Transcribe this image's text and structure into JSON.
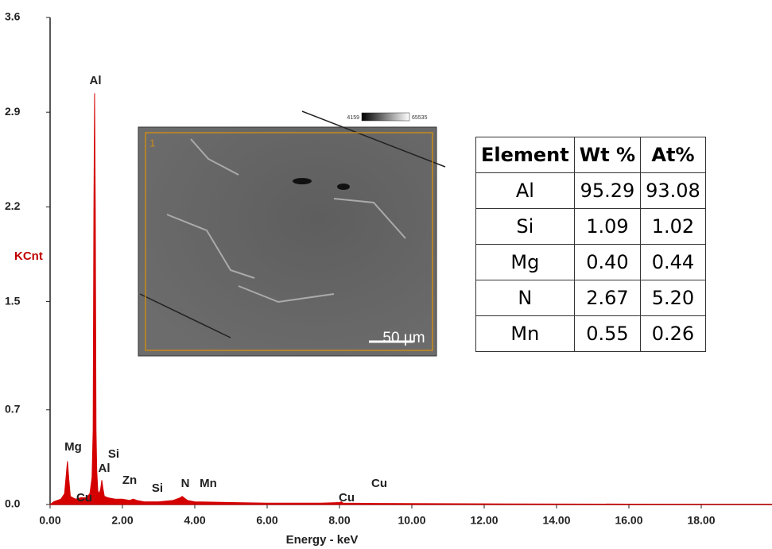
{
  "chart_data": {
    "type": "area",
    "x_label": "Energy - keV",
    "y_label": "KCnt",
    "color": "#d40000",
    "x": [
      0,
      0.1,
      0.2,
      0.3,
      0.4,
      0.44,
      0.48,
      0.52,
      0.56,
      0.7,
      0.85,
      1.0,
      1.1,
      1.16,
      1.19,
      1.21,
      1.23,
      1.25,
      1.27,
      1.29,
      1.32,
      1.36,
      1.4,
      1.43,
      1.46,
      1.5,
      1.6,
      1.8,
      2.0,
      2.2,
      2.3,
      2.4,
      2.6,
      3.0,
      3.4,
      3.6,
      3.65,
      3.7,
      3.8,
      4.0,
      5.0,
      6.0,
      7.5,
      8.0,
      8.05,
      8.1,
      9.0,
      12.0,
      16.0,
      20.0
    ],
    "values": [
      0,
      0.02,
      0.03,
      0.04,
      0.08,
      0.2,
      0.32,
      0.18,
      0.06,
      0.04,
      0.05,
      0.05,
      0.08,
      0.2,
      0.55,
      2.15,
      3.04,
      2.15,
      0.55,
      0.25,
      0.1,
      0.08,
      0.12,
      0.18,
      0.12,
      0.06,
      0.05,
      0.04,
      0.04,
      0.03,
      0.04,
      0.03,
      0.02,
      0.02,
      0.03,
      0.05,
      0.06,
      0.05,
      0.03,
      0.02,
      0.015,
      0.01,
      0.01,
      0.015,
      0.02,
      0.01,
      0.008,
      0.005,
      0.003,
      0.002
    ],
    "xlim": [
      0,
      20
    ],
    "ylim": [
      0,
      3.6
    ],
    "xticks": [
      {
        "value": 0,
        "label": "0.00"
      },
      {
        "value": 2,
        "label": "2.00"
      },
      {
        "value": 4,
        "label": "4.00"
      },
      {
        "value": 6,
        "label": "6.00"
      },
      {
        "value": 8,
        "label": "8.00"
      },
      {
        "value": 10,
        "label": "10.00"
      },
      {
        "value": 12,
        "label": "12.00"
      },
      {
        "value": 14,
        "label": "14.00"
      },
      {
        "value": 16,
        "label": "16.00"
      },
      {
        "value": 18,
        "label": "18.00"
      }
    ],
    "yticks": [
      {
        "value": 0,
        "label": "0.0"
      },
      0.7,
      1.5,
      2.2,
      2.9,
      3.6
    ],
    "peak_labels": [
      "Al",
      "Mg",
      "Si",
      "Al",
      "Zn",
      "Si",
      "N",
      "Mn",
      "Cu",
      "Cu",
      "Cu"
    ]
  },
  "inset_image": {
    "frame_label": "1",
    "scale_bar": "50 µm",
    "colorbar_min": "4159",
    "colorbar_max": "65535"
  },
  "table": {
    "header": [
      "Element",
      "Wt %",
      "At%"
    ],
    "rows": [
      [
        "Al",
        "95.29",
        "93.08"
      ],
      [
        "Si",
        "1.09",
        "1.02"
      ],
      [
        "Mg",
        "0.40",
        "0.44"
      ],
      [
        "N",
        "2.67",
        "5.20"
      ],
      [
        "Mn",
        "0.55",
        "0.26"
      ]
    ]
  }
}
